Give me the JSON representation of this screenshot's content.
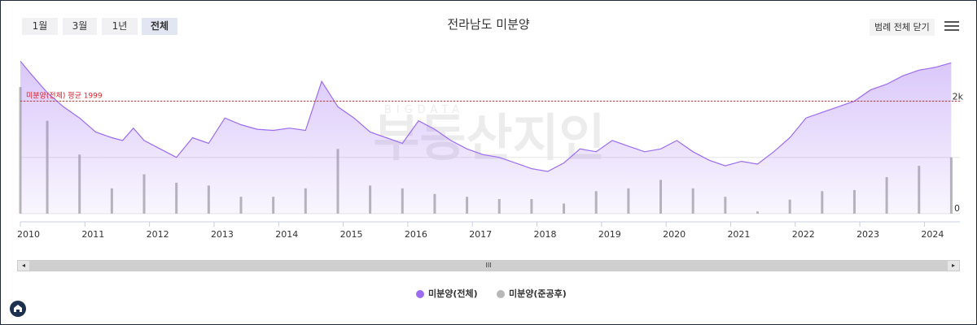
{
  "range_buttons": [
    "1월",
    "3월",
    "1년",
    "전체"
  ],
  "active_range": "전체",
  "legend_toggle_label": "범례 전체 닫기",
  "watermark": {
    "small": "BIGDATA",
    "main": "부동산지인"
  },
  "colors": {
    "total": "#9d6cf2",
    "completed": "#b8b8b8",
    "avg_line": "#e0262f",
    "avg_label": "#d6232b"
  },
  "scrollbar": {
    "grip": "III",
    "left": "◂",
    "right": "▸"
  },
  "chart_data": {
    "type": "line+bar",
    "title": "전라남도 미분양",
    "x_ticks": [
      "2010",
      "2011",
      "2012",
      "2013",
      "2014",
      "2015",
      "2016",
      "2017",
      "2018",
      "2019",
      "2020",
      "2021",
      "2022",
      "2023",
      "2024"
    ],
    "y_ticks": [
      "0",
      "2k"
    ],
    "ylim": [
      0,
      2800
    ],
    "grid": "horizontal",
    "legend_position": "bottom",
    "reference_line": {
      "label": "미분양(전체) 평균 1999",
      "value": 1999
    },
    "series": [
      {
        "name": "미분양(전체)",
        "type": "area",
        "x": [
          "2010-01",
          "2010-03",
          "2010-06",
          "2010-09",
          "2010-12",
          "2011-03",
          "2011-06",
          "2011-08",
          "2011-10",
          "2011-12",
          "2012-03",
          "2012-06",
          "2012-09",
          "2012-12",
          "2013-03",
          "2013-06",
          "2013-09",
          "2013-12",
          "2014-03",
          "2014-06",
          "2014-09",
          "2014-12",
          "2015-03",
          "2015-06",
          "2015-09",
          "2015-12",
          "2016-03",
          "2016-06",
          "2016-09",
          "2016-12",
          "2017-03",
          "2017-06",
          "2017-09",
          "2017-12",
          "2018-03",
          "2018-06",
          "2018-09",
          "2018-12",
          "2019-03",
          "2019-06",
          "2019-09",
          "2019-12",
          "2020-03",
          "2020-06",
          "2020-09",
          "2020-12",
          "2021-03",
          "2021-06",
          "2021-09",
          "2021-12",
          "2022-03",
          "2022-06",
          "2022-09",
          "2022-12",
          "2023-03",
          "2023-06",
          "2023-09",
          "2023-12",
          "2024-03",
          "2024-06"
        ],
        "values": [
          2710,
          2480,
          2150,
          1900,
          1700,
          1450,
          1350,
          1300,
          1520,
          1300,
          1150,
          1000,
          1350,
          1250,
          1700,
          1580,
          1500,
          1480,
          1520,
          1480,
          2350,
          1900,
          1700,
          1450,
          1350,
          1250,
          1650,
          1500,
          1300,
          1150,
          1050,
          1000,
          900,
          800,
          750,
          900,
          1150,
          1100,
          1300,
          1200,
          1100,
          1150,
          1300,
          1100,
          950,
          850,
          930,
          880,
          1100,
          1350,
          1700,
          1800,
          1900,
          2000,
          2200,
          2300,
          2450,
          2550,
          2600,
          2680
        ]
      },
      {
        "name": "미분양(준공후)",
        "type": "bar",
        "x": [
          "2010-01",
          "2010-06",
          "2010-12",
          "2011-06",
          "2011-12",
          "2012-06",
          "2012-12",
          "2013-06",
          "2013-12",
          "2014-06",
          "2014-12",
          "2015-06",
          "2015-12",
          "2016-06",
          "2016-12",
          "2017-06",
          "2017-12",
          "2018-06",
          "2018-12",
          "2019-06",
          "2019-12",
          "2020-06",
          "2020-12",
          "2021-06",
          "2021-12",
          "2022-06",
          "2022-12",
          "2023-06",
          "2023-12",
          "2024-06"
        ],
        "values": [
          2250,
          1650,
          1050,
          450,
          700,
          550,
          500,
          300,
          300,
          450,
          1150,
          500,
          450,
          350,
          300,
          260,
          260,
          180,
          400,
          450,
          600,
          450,
          300,
          40,
          250,
          400,
          420,
          650,
          850,
          1000
        ]
      }
    ]
  }
}
